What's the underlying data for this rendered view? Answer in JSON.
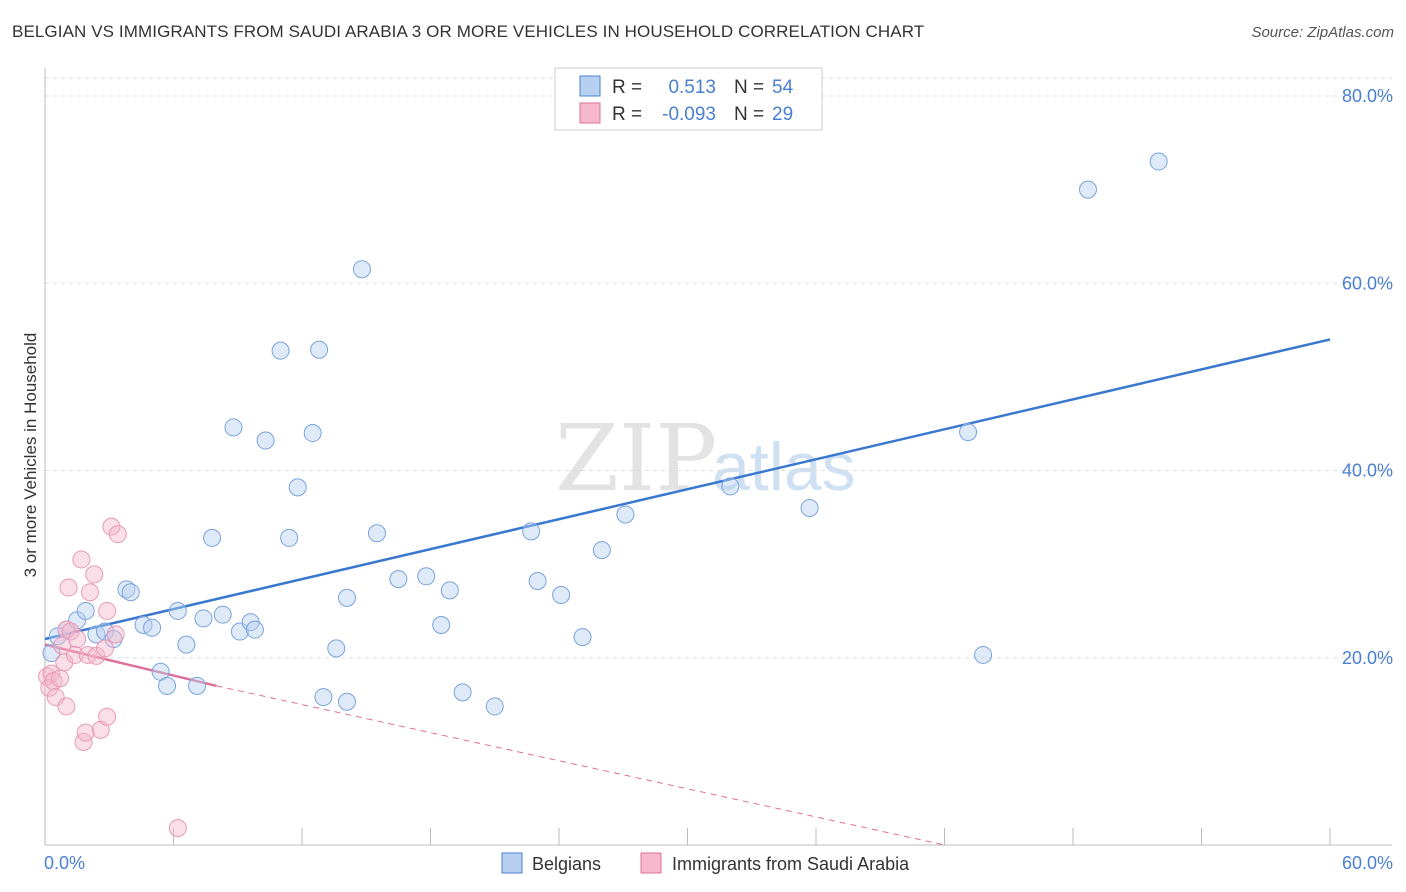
{
  "title": "BELGIAN VS IMMIGRANTS FROM SAUDI ARABIA 3 OR MORE VEHICLES IN HOUSEHOLD CORRELATION CHART",
  "source": "Source: ZipAtlas.com",
  "watermark": {
    "zip": "ZIP",
    "atlas": "atlas"
  },
  "colors": {
    "blue": "#4a7fd0",
    "blue_fill": "#b8d0f0",
    "pink": "#e0709a",
    "pink_fill": "#f5b8cc",
    "grid": "#dddddd"
  },
  "chart_data": {
    "type": "scatter",
    "ylabel": "3 or more Vehicles in Household",
    "xlim": [
      0,
      60
    ],
    "ylim": [
      0,
      80
    ],
    "x_tick_labels": [
      "0.0%",
      "60.0%"
    ],
    "y_ticks": [
      20,
      40,
      60,
      80
    ],
    "y_tick_labels": [
      "20.0%",
      "40.0%",
      "60.0%",
      "80.0%"
    ],
    "grid": true,
    "legend": {
      "position": "top-center",
      "rows": [
        {
          "r_label": "R =",
          "r_value": "0.513",
          "n_label": "N =",
          "n_value": "54"
        },
        {
          "r_label": "R =",
          "r_value": "-0.093",
          "n_label": "N =",
          "n_value": "29"
        }
      ]
    },
    "series": [
      {
        "name": "Belgians",
        "color": "#4a7fd0",
        "points": [
          [
            0.3,
            20.5
          ],
          [
            0.6,
            22.3
          ],
          [
            1.0,
            23.0
          ],
          [
            1.5,
            24.0
          ],
          [
            1.9,
            25.0
          ],
          [
            2.4,
            22.5
          ],
          [
            2.8,
            22.8
          ],
          [
            3.2,
            22.0
          ],
          [
            3.8,
            27.3
          ],
          [
            4.0,
            27.0
          ],
          [
            4.6,
            23.5
          ],
          [
            5.0,
            23.2
          ],
          [
            5.4,
            18.5
          ],
          [
            5.7,
            17.0
          ],
          [
            6.2,
            25.0
          ],
          [
            6.6,
            21.4
          ],
          [
            7.1,
            17.0
          ],
          [
            7.4,
            24.2
          ],
          [
            7.8,
            32.8
          ],
          [
            8.3,
            24.6
          ],
          [
            8.8,
            44.6
          ],
          [
            9.1,
            22.8
          ],
          [
            9.6,
            23.8
          ],
          [
            9.8,
            23.0
          ],
          [
            10.3,
            43.2
          ],
          [
            11.0,
            52.8
          ],
          [
            11.4,
            32.8
          ],
          [
            11.8,
            38.2
          ],
          [
            12.5,
            44.0
          ],
          [
            12.8,
            52.9
          ],
          [
            13.0,
            15.8
          ],
          [
            13.6,
            21.0
          ],
          [
            14.1,
            26.4
          ],
          [
            14.1,
            15.3
          ],
          [
            14.8,
            61.5
          ],
          [
            15.5,
            33.3
          ],
          [
            16.5,
            28.4
          ],
          [
            17.8,
            28.7
          ],
          [
            18.5,
            23.5
          ],
          [
            18.9,
            27.2
          ],
          [
            19.5,
            16.3
          ],
          [
            21.0,
            14.8
          ],
          [
            22.7,
            33.5
          ],
          [
            23.0,
            28.2
          ],
          [
            24.1,
            26.7
          ],
          [
            25.1,
            22.2
          ],
          [
            26.0,
            31.5
          ],
          [
            27.1,
            35.3
          ],
          [
            32.0,
            38.3
          ],
          [
            35.7,
            36.0
          ],
          [
            43.1,
            44.1
          ],
          [
            43.8,
            20.3
          ],
          [
            48.7,
            70.0
          ],
          [
            52.0,
            73.0
          ]
        ]
      },
      {
        "name": "Immigrants from Saudi Arabia",
        "color": "#e0709a",
        "points": [
          [
            0.1,
            18.0
          ],
          [
            0.2,
            16.8
          ],
          [
            0.3,
            18.3
          ],
          [
            0.4,
            17.5
          ],
          [
            0.5,
            15.8
          ],
          [
            0.7,
            17.8
          ],
          [
            0.8,
            21.3
          ],
          [
            0.9,
            19.5
          ],
          [
            1.0,
            23.0
          ],
          [
            1.0,
            14.8
          ],
          [
            1.1,
            27.5
          ],
          [
            1.2,
            22.8
          ],
          [
            1.4,
            20.3
          ],
          [
            1.5,
            22.0
          ],
          [
            1.7,
            30.5
          ],
          [
            1.8,
            11.0
          ],
          [
            1.9,
            12.0
          ],
          [
            2.0,
            20.3
          ],
          [
            2.1,
            27.0
          ],
          [
            2.3,
            28.9
          ],
          [
            2.4,
            20.2
          ],
          [
            2.6,
            12.3
          ],
          [
            2.8,
            21.0
          ],
          [
            2.9,
            13.7
          ],
          [
            2.9,
            25.0
          ],
          [
            3.1,
            34.0
          ],
          [
            3.3,
            22.5
          ],
          [
            3.4,
            33.2
          ],
          [
            6.2,
            1.8
          ]
        ]
      }
    ],
    "trendlines": [
      {
        "series": "Belgians",
        "x": [
          0,
          60
        ],
        "y": [
          22.0,
          54.0
        ],
        "style": "solid"
      },
      {
        "series": "Immigrants from Saudi Arabia",
        "x": [
          0,
          8
        ],
        "y": [
          21.4,
          17.0
        ],
        "style": "solid"
      },
      {
        "series": "Immigrants from Saudi Arabia",
        "x": [
          8,
          42
        ],
        "y": [
          17.0,
          0
        ],
        "style": "dashed"
      }
    ]
  }
}
